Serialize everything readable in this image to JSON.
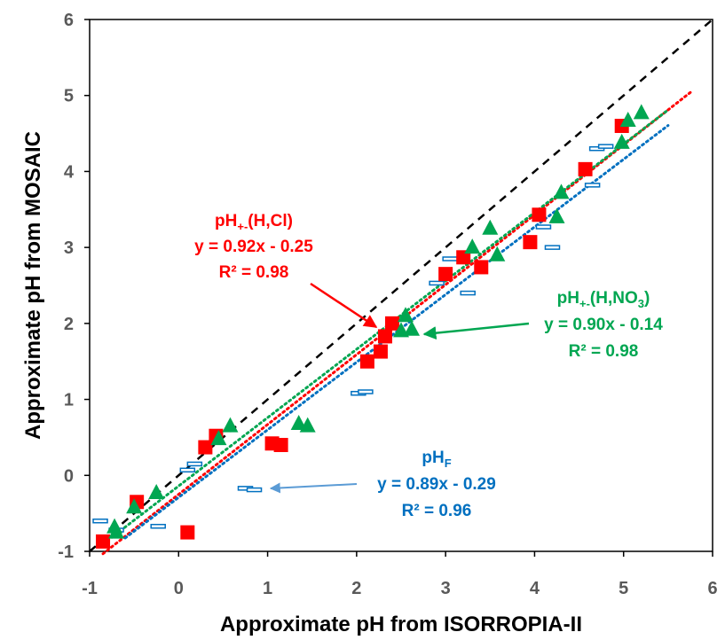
{
  "chart_data": {
    "type": "scatter",
    "xlabel": "Approximate pH from ISORROPIA-II",
    "ylabel": "Approximate pH from MOSAIC",
    "xlim": [
      -1,
      6
    ],
    "ylim": [
      -1,
      6
    ],
    "xticks": [
      "-1",
      "0",
      "1",
      "2",
      "3",
      "4",
      "5",
      "6"
    ],
    "yticks": [
      "-1",
      "0",
      "1",
      "2",
      "3",
      "4",
      "5",
      "6"
    ],
    "grid": false,
    "reference_line": {
      "style": "dashed",
      "color": "#000000",
      "x": [
        -1,
        6
      ],
      "y": [
        -1,
        6
      ]
    },
    "series": [
      {
        "key": "hcl",
        "color": "#FF0000",
        "marker": "square",
        "fit": {
          "slope": 0.92,
          "intercept": -0.25,
          "x_range": [
            -0.85,
            5.75
          ]
        },
        "points": [
          [
            -0.85,
            -0.87
          ],
          [
            -0.47,
            -0.35
          ],
          [
            0.1,
            -0.75
          ],
          [
            0.3,
            0.37
          ],
          [
            0.42,
            0.52
          ],
          [
            1.05,
            0.42
          ],
          [
            1.15,
            0.4
          ],
          [
            2.12,
            1.5
          ],
          [
            2.27,
            1.63
          ],
          [
            2.32,
            1.83
          ],
          [
            2.4,
            2.0
          ],
          [
            3.0,
            2.65
          ],
          [
            3.2,
            2.87
          ],
          [
            3.4,
            2.74
          ],
          [
            3.95,
            3.07
          ],
          [
            4.05,
            3.43
          ],
          [
            4.57,
            4.03
          ],
          [
            4.98,
            4.6
          ]
        ]
      },
      {
        "key": "hno3",
        "color": "#00A651",
        "marker": "triangle",
        "fit": {
          "slope": 0.9,
          "intercept": -0.14,
          "x_range": [
            -0.75,
            5.5
          ]
        },
        "points": [
          [
            -0.72,
            -0.68
          ],
          [
            -0.7,
            -0.75
          ],
          [
            -0.5,
            -0.42
          ],
          [
            -0.25,
            -0.23
          ],
          [
            0.45,
            0.48
          ],
          [
            0.58,
            0.65
          ],
          [
            1.35,
            0.68
          ],
          [
            1.45,
            0.65
          ],
          [
            2.5,
            1.9
          ],
          [
            2.55,
            2.1
          ],
          [
            2.62,
            1.92
          ],
          [
            3.3,
            3.0
          ],
          [
            3.5,
            3.25
          ],
          [
            3.58,
            2.9
          ],
          [
            4.25,
            3.4
          ],
          [
            4.3,
            3.72
          ],
          [
            4.98,
            4.38
          ],
          [
            5.05,
            4.67
          ],
          [
            5.2,
            4.77
          ]
        ]
      },
      {
        "key": "f",
        "color": "#0070C0",
        "marker": "dash",
        "fit": {
          "slope": 0.89,
          "intercept": -0.29,
          "x_range": [
            -0.6,
            5.5
          ]
        },
        "points": [
          [
            -0.88,
            -0.6
          ],
          [
            -0.7,
            -0.72
          ],
          [
            -0.23,
            -0.67
          ],
          [
            0.1,
            0.07
          ],
          [
            0.18,
            0.15
          ],
          [
            0.75,
            -0.17
          ],
          [
            0.85,
            -0.19
          ],
          [
            2.02,
            1.08
          ],
          [
            2.1,
            1.1
          ],
          [
            2.9,
            2.53
          ],
          [
            3.05,
            2.85
          ],
          [
            3.25,
            2.4
          ],
          [
            4.1,
            3.27
          ],
          [
            4.2,
            3.0
          ],
          [
            4.65,
            3.82
          ],
          [
            4.7,
            4.3
          ],
          [
            4.8,
            4.33
          ]
        ]
      }
    ],
    "annotations": {
      "hcl": {
        "title_main": "pH",
        "title_sub": "+-",
        "title_tail": "(H,Cl)",
        "equation": "y = 0.92x - 0.25",
        "r2": "R² = 0.98",
        "color": "#FF0000",
        "arrow_color": "#FF0000"
      },
      "hno3": {
        "title_main": "pH",
        "title_sub": "+-",
        "title_mid": "(H,NO",
        "title_sub2": "3",
        "title_tail": ")",
        "equation": "y = 0.90x - 0.14",
        "r2": "R² = 0.98",
        "color": "#00A651",
        "arrow_color": "#00A651"
      },
      "f": {
        "title_main": "pH",
        "title_sub": "F",
        "equation": "y = 0.89x - 0.29",
        "r2": "R² = 0.96",
        "color": "#0070C0",
        "arrow_color": "#5B9BD5"
      }
    }
  }
}
